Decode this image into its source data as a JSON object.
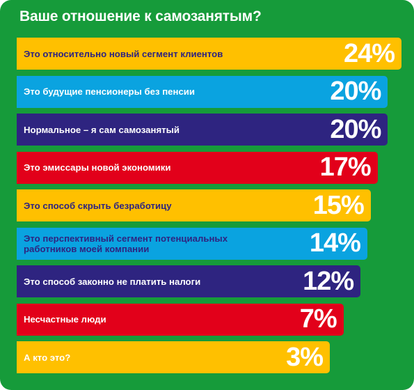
{
  "chart_data": {
    "type": "bar",
    "orientation": "horizontal",
    "title": "Ваше отношение к самозанятым?",
    "value_suffix": "%",
    "xlim": [
      0,
      24
    ],
    "grid": false,
    "categories": [
      "Это относительно новый сегмент клиентов",
      "Это будущие пенсионеры без пенсии",
      "Нормальное – я сам самозанятый",
      "Это эмиссары новой экономики",
      "Это способ скрыть безработицу",
      "Это перспективный сегмент потенциальных\nработников моей компании",
      "Это способ законно не платить налоги",
      "Несчастные люди",
      "А кто это?"
    ],
    "values": [
      24,
      20,
      20,
      17,
      15,
      14,
      12,
      7,
      3
    ],
    "value_labels": [
      "24%",
      "20%",
      "20%",
      "17%",
      "15%",
      "14%",
      "12%",
      "7%",
      "3%"
    ],
    "bar_colors": [
      "#FFC000",
      "#0AA3E0",
      "#2E2480",
      "#E2001A",
      "#FFC000",
      "#0AA3E0",
      "#2E2480",
      "#E2001A",
      "#FFC000"
    ],
    "label_colors": [
      "#2E2480",
      "#ffffff",
      "#ffffff",
      "#ffffff",
      "#2E2480",
      "#2E2480",
      "#ffffff",
      "#ffffff",
      "#ffffff"
    ],
    "background_color": "#169B3A",
    "title_color": "#ffffff"
  }
}
